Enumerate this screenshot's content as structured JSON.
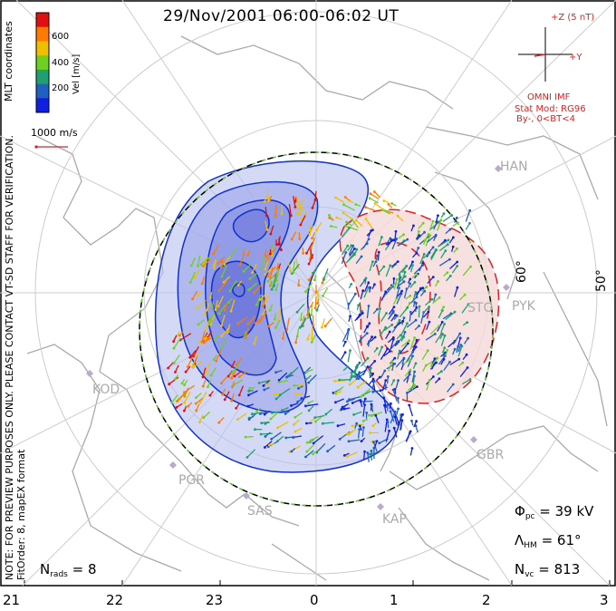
{
  "title": "29/Nov/2001 06:00-06:02 UT",
  "side_notes": {
    "preview": "NOTE: FOR PREVIEW PURPOSES ONLY. PLEASE CONTACT VT-SD STAFF FOR VERIFICATION.",
    "fit": "FitOrder: 8, mapEX format",
    "coords": "MLT coordinates"
  },
  "colorbar": {
    "label": "Vel [m/s]",
    "ticks": [
      "600",
      "400",
      "200"
    ],
    "colors": [
      "#e01010",
      "#ff7a00",
      "#f0c000",
      "#70d020",
      "#20a070",
      "#2060c0",
      "#1020e0"
    ]
  },
  "velocity_scale": "1000 m/s",
  "imf": {
    "plusz": "+Z (5 nT)",
    "plusy": "+Y",
    "source": "OMNI IMF",
    "model": "Stat Mod: RG96",
    "cond": "By-, 0<BT<4"
  },
  "stats": {
    "phi_sym": "Φ",
    "phi_sub": "pc",
    "phi_val": "= 39 kV",
    "lam_sym": "Λ",
    "lam_sub": "HM",
    "lam_val": "= 61°",
    "nvc_sym": "N",
    "nvc_sub": "vc",
    "nvc_val": "= 813",
    "nrads_sym": "N",
    "nrads_sub": "rads",
    "nrads_val": "= 8"
  },
  "mlt_labels": [
    "21",
    "22",
    "23",
    "0",
    "1",
    "2",
    "3"
  ],
  "lat_labels": [
    "60°",
    "50°"
  ],
  "stations": [
    "HAN",
    "STO",
    "PYK",
    "KOD",
    "PGR",
    "SAS",
    "KAP",
    "GBR"
  ],
  "colors": {
    "coast": "#aaaaaa",
    "grid": "#cccccc",
    "dusk_cell": "#b8c0ee",
    "dawn_cell": "#f4d8d8",
    "dusk_contour": "#1030d0",
    "dawn_contour": "#e02020",
    "hmb": "#70c040"
  }
}
